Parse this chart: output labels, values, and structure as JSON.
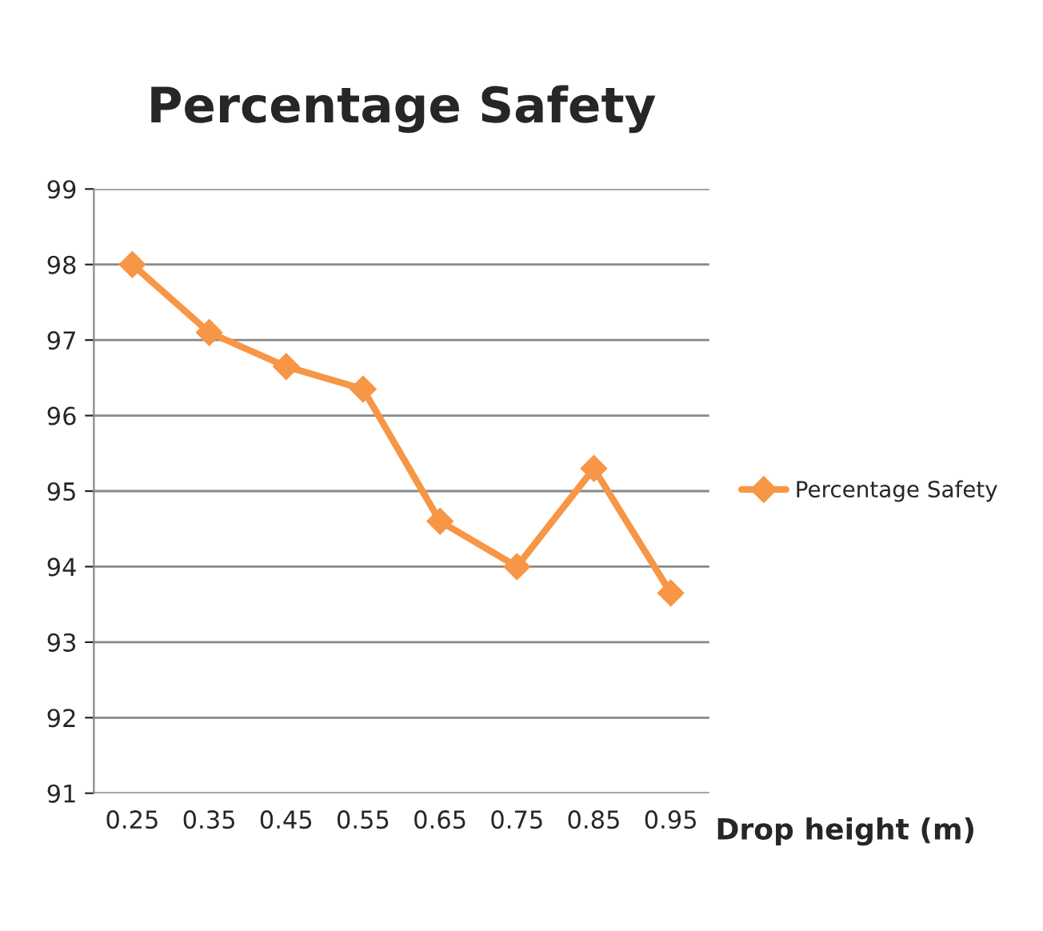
{
  "chart_data": {
    "type": "line",
    "title": "Percentage Safety",
    "xlabel": "Drop height (m)",
    "categories": [
      "0.25",
      "0.35",
      "0.45",
      "0.55",
      "0.65",
      "0.75",
      "0.85",
      "0.95"
    ],
    "series": [
      {
        "name": "Percentage Safety",
        "color": "#f79646",
        "values": [
          98.0,
          97.1,
          96.65,
          96.35,
          94.6,
          94.0,
          95.3,
          93.65
        ]
      }
    ],
    "ylim": [
      91,
      99
    ],
    "yticks": [
      91,
      92,
      93,
      94,
      95,
      96,
      97,
      98,
      99
    ],
    "grid": "y",
    "legend": "right",
    "marker": "diamond"
  }
}
